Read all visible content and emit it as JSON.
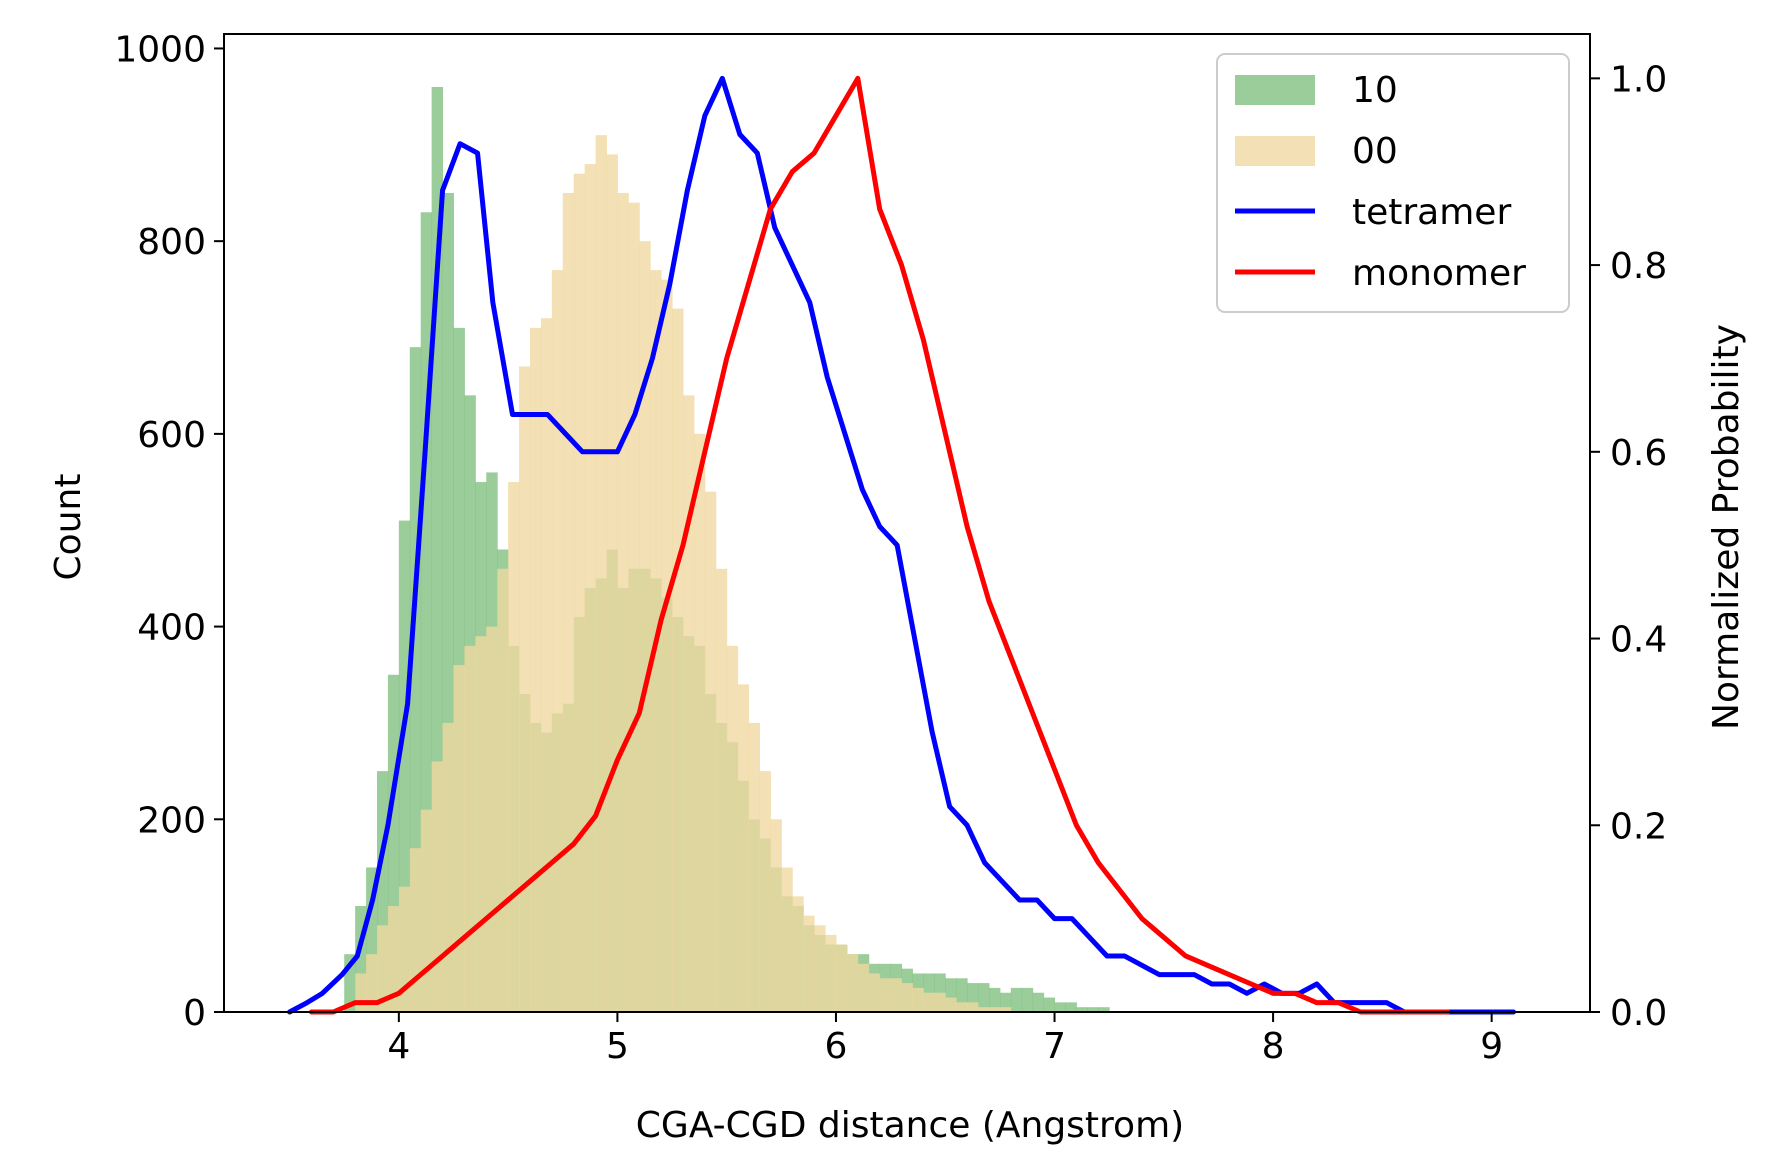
{
  "chart_data": {
    "type": "bar",
    "xlabel": "CGA-CGD distance (Angstrom)",
    "ylabel": "Count",
    "y2label": "Normalized Probability",
    "xlim": [
      3.2,
      9.45
    ],
    "ylim": [
      0,
      1015
    ],
    "y2lim": [
      0,
      1.0475
    ],
    "x_ticks": [
      4,
      5,
      6,
      7,
      8,
      9
    ],
    "y_ticks": [
      0,
      200,
      400,
      600,
      800,
      1000
    ],
    "y2_ticks": [
      0.0,
      0.2,
      0.4,
      0.6,
      0.8,
      1.0
    ],
    "x_tick_labels": [
      "4",
      "5",
      "6",
      "7",
      "8",
      "9"
    ],
    "y_tick_labels": [
      "0",
      "200",
      "400",
      "600",
      "800",
      "1000"
    ],
    "y2_tick_labels": [
      "0.0",
      "0.2",
      "0.4",
      "0.6",
      "0.8",
      "1.0"
    ],
    "legend_position": "top-right",
    "bin_width": 0.05,
    "histograms": [
      {
        "name": "10",
        "color": "#7fbf7f",
        "bin_start": 3.75,
        "values": [
          60,
          110,
          150,
          250,
          350,
          510,
          690,
          830,
          960,
          850,
          710,
          640,
          550,
          560,
          480,
          380,
          330,
          300,
          290,
          310,
          320,
          410,
          440,
          450,
          480,
          440,
          460,
          460,
          450,
          430,
          410,
          390,
          380,
          330,
          300,
          280,
          240,
          200,
          180,
          150,
          120,
          110,
          90,
          80,
          70,
          70,
          60,
          60,
          50,
          50,
          50,
          45,
          40,
          40,
          40,
          35,
          35,
          30,
          30,
          25,
          20,
          25,
          25,
          20,
          15,
          10,
          10,
          5,
          5,
          5
        ]
      },
      {
        "name": "00",
        "color": "#f0d8a0",
        "bin_start": 3.8,
        "values": [
          40,
          60,
          90,
          110,
          130,
          170,
          210,
          260,
          300,
          360,
          380,
          390,
          400,
          460,
          550,
          670,
          710,
          720,
          770,
          850,
          870,
          880,
          910,
          890,
          850,
          840,
          800,
          770,
          760,
          730,
          640,
          600,
          540,
          460,
          380,
          340,
          300,
          250,
          200,
          150,
          120,
          100,
          90,
          80,
          70,
          60,
          50,
          40,
          35,
          35,
          30,
          25,
          20,
          20,
          15,
          10,
          10,
          5,
          5,
          5
        ]
      }
    ],
    "series": [
      {
        "name": "tetramer",
        "color": "#0000ff",
        "axis": "right",
        "x": [
          3.5,
          3.58,
          3.65,
          3.74,
          3.81,
          3.88,
          3.95,
          4.04,
          4.12,
          4.2,
          4.28,
          4.36,
          4.43,
          4.52,
          4.6,
          4.68,
          4.76,
          4.84,
          4.92,
          5.0,
          5.08,
          5.16,
          5.24,
          5.32,
          5.4,
          5.48,
          5.56,
          5.64,
          5.72,
          5.8,
          5.88,
          5.96,
          6.04,
          6.12,
          6.2,
          6.28,
          6.36,
          6.44,
          6.52,
          6.6,
          6.68,
          6.76,
          6.84,
          6.92,
          7.0,
          7.08,
          7.16,
          7.24,
          7.32,
          7.4,
          7.48,
          7.56,
          7.64,
          7.72,
          7.8,
          7.88,
          7.96,
          8.04,
          8.12,
          8.2,
          8.28,
          8.36,
          8.44,
          8.52,
          8.6,
          8.68,
          8.76,
          8.84,
          8.92,
          9.0,
          9.1
        ],
        "values": [
          0.0,
          0.01,
          0.02,
          0.04,
          0.06,
          0.12,
          0.2,
          0.33,
          0.6,
          0.88,
          0.93,
          0.92,
          0.76,
          0.64,
          0.64,
          0.64,
          0.62,
          0.6,
          0.6,
          0.6,
          0.64,
          0.7,
          0.78,
          0.88,
          0.96,
          1.0,
          0.94,
          0.92,
          0.84,
          0.8,
          0.76,
          0.68,
          0.62,
          0.56,
          0.52,
          0.5,
          0.4,
          0.3,
          0.22,
          0.2,
          0.16,
          0.14,
          0.12,
          0.12,
          0.1,
          0.1,
          0.08,
          0.06,
          0.06,
          0.05,
          0.04,
          0.04,
          0.04,
          0.03,
          0.03,
          0.02,
          0.03,
          0.02,
          0.02,
          0.03,
          0.01,
          0.01,
          0.01,
          0.01,
          0.0,
          0.0,
          0.0,
          0.0,
          0.0,
          0.0,
          0.0
        ]
      },
      {
        "name": "monomer",
        "color": "#ff0000",
        "axis": "right",
        "x": [
          3.6,
          3.7,
          3.8,
          3.9,
          4.0,
          4.1,
          4.2,
          4.3,
          4.4,
          4.5,
          4.6,
          4.7,
          4.8,
          4.9,
          5.0,
          5.1,
          5.2,
          5.3,
          5.4,
          5.5,
          5.6,
          5.7,
          5.8,
          5.9,
          6.0,
          6.1,
          6.2,
          6.3,
          6.4,
          6.5,
          6.6,
          6.7,
          6.8,
          6.9,
          7.0,
          7.1,
          7.2,
          7.3,
          7.4,
          7.5,
          7.6,
          7.7,
          7.8,
          7.9,
          8.0,
          8.1,
          8.2,
          8.3,
          8.4,
          8.5,
          8.6,
          8.7,
          8.8
        ],
        "values": [
          0.0,
          0.0,
          0.01,
          0.01,
          0.02,
          0.04,
          0.06,
          0.08,
          0.1,
          0.12,
          0.14,
          0.16,
          0.18,
          0.21,
          0.27,
          0.32,
          0.42,
          0.5,
          0.6,
          0.7,
          0.78,
          0.86,
          0.9,
          0.92,
          0.96,
          1.0,
          0.86,
          0.8,
          0.72,
          0.62,
          0.52,
          0.44,
          0.38,
          0.32,
          0.26,
          0.2,
          0.16,
          0.13,
          0.1,
          0.08,
          0.06,
          0.05,
          0.04,
          0.03,
          0.02,
          0.02,
          0.01,
          0.01,
          0.0,
          0.0,
          0.0,
          0.0,
          0.0
        ]
      }
    ]
  }
}
